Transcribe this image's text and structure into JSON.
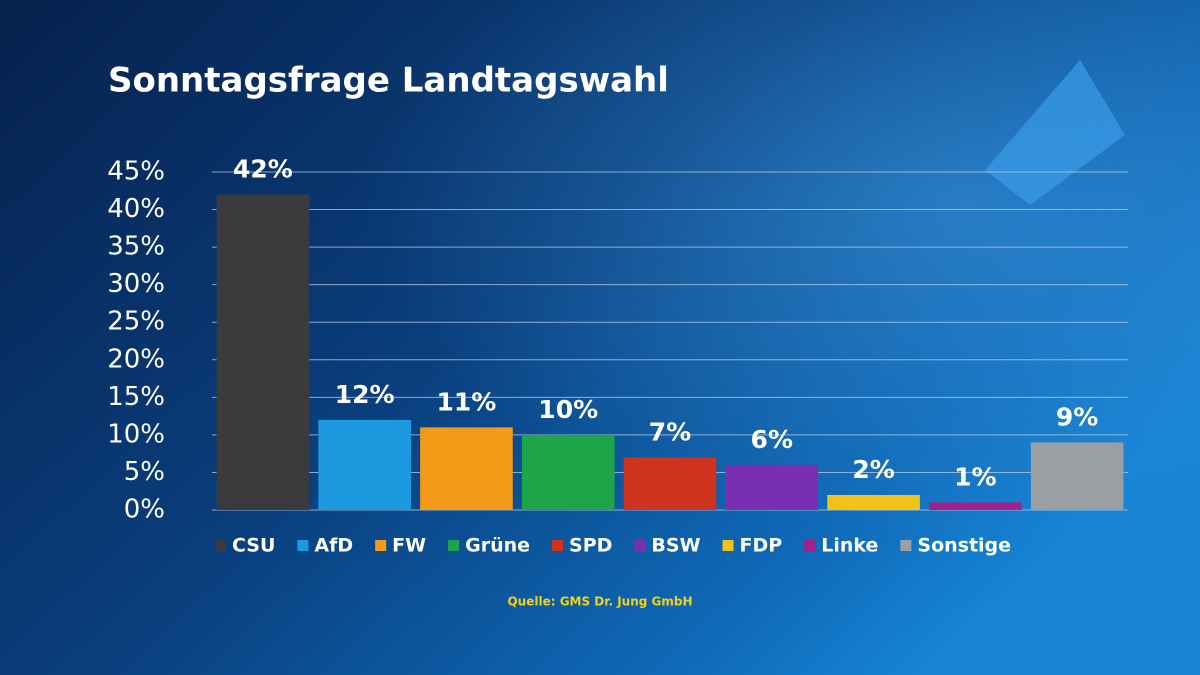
{
  "chart_data": {
    "type": "bar",
    "title": "Sonntagsfrage Landtagswahl",
    "source": "Quelle: GMS Dr. Jung GmbH",
    "categories": [
      "CSU",
      "AfD",
      "FW",
      "Grüne",
      "SPD",
      "BSW",
      "FDP",
      "Linke",
      "Sonstige"
    ],
    "values": [
      42,
      12,
      11,
      10,
      7,
      6,
      2,
      1,
      9
    ],
    "value_labels": [
      "42%",
      "12%",
      "11%",
      "10%",
      "7%",
      "6%",
      "2%",
      "1%",
      "9%"
    ],
    "colors": [
      "#3b3b3d",
      "#1c9ae0",
      "#f39a17",
      "#1ea54a",
      "#cf321f",
      "#7a2eb2",
      "#f1c318",
      "#a3208c",
      "#9b9ea2"
    ],
    "ylim": [
      0,
      45
    ],
    "yticks": [
      {
        "value": 0,
        "label": "0%"
      },
      {
        "value": 5,
        "label": "5%"
      },
      {
        "value": 10,
        "label": "10%"
      },
      {
        "value": 15,
        "label": "15%"
      },
      {
        "value": 20,
        "label": "20%"
      },
      {
        "value": 25,
        "label": "25%"
      },
      {
        "value": 30,
        "label": "30%"
      },
      {
        "value": 35,
        "label": "35%"
      },
      {
        "value": 40,
        "label": "40%"
      },
      {
        "value": 45,
        "label": "45%"
      }
    ],
    "grid": true,
    "legend": "bottom"
  }
}
